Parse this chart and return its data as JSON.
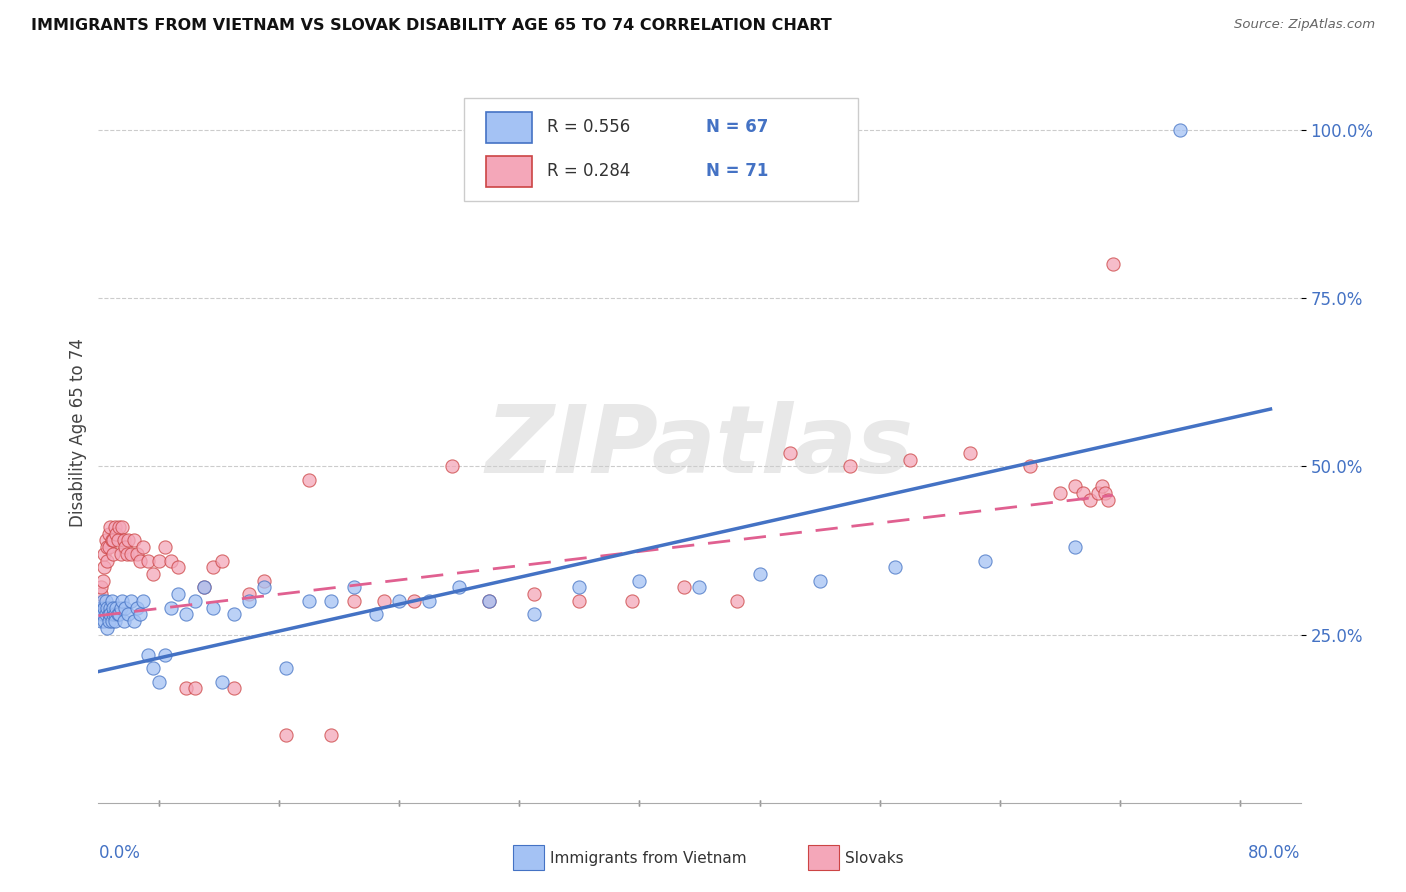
{
  "title": "IMMIGRANTS FROM VIETNAM VS SLOVAK DISABILITY AGE 65 TO 74 CORRELATION CHART",
  "source": "Source: ZipAtlas.com",
  "ylabel": "Disability Age 65 to 74",
  "xlim": [
    0.0,
    0.8
  ],
  "ylim": [
    0.0,
    1.1
  ],
  "yticks": [
    0.25,
    0.5,
    0.75,
    1.0
  ],
  "ytick_labels": [
    "25.0%",
    "50.0%",
    "75.0%",
    "100.0%"
  ],
  "xtick_left_label": "0.0%",
  "xtick_right_label": "80.0%",
  "legend_r1": "R = 0.556",
  "legend_n1": "N = 67",
  "legend_r2": "R = 0.284",
  "legend_n2": "N = 71",
  "color_vietnam_fill": "#a4c2f4",
  "color_vietnam_edge": "#4472c4",
  "color_slovak_fill": "#f4a7b9",
  "color_slovak_edge": "#cc4444",
  "color_vietnam_line": "#4472c4",
  "color_slovak_line": "#e06090",
  "color_ytick": "#4472c4",
  "color_xtick": "#4472c4",
  "bottom_legend_label1": "Immigrants from Vietnam",
  "bottom_legend_label2": "Slovaks",
  "watermark": "ZIPatlas",
  "vietnam_x": [
    0.001,
    0.002,
    0.002,
    0.003,
    0.003,
    0.004,
    0.004,
    0.005,
    0.005,
    0.006,
    0.006,
    0.007,
    0.007,
    0.008,
    0.008,
    0.009,
    0.009,
    0.01,
    0.01,
    0.011,
    0.011,
    0.012,
    0.013,
    0.014,
    0.015,
    0.016,
    0.017,
    0.018,
    0.02,
    0.022,
    0.024,
    0.026,
    0.028,
    0.03,
    0.033,
    0.036,
    0.04,
    0.044,
    0.048,
    0.053,
    0.058,
    0.064,
    0.07,
    0.076,
    0.082,
    0.09,
    0.1,
    0.11,
    0.125,
    0.14,
    0.155,
    0.17,
    0.185,
    0.2,
    0.22,
    0.24,
    0.26,
    0.29,
    0.32,
    0.36,
    0.4,
    0.44,
    0.48,
    0.53,
    0.59,
    0.65,
    0.72
  ],
  "vietnam_y": [
    0.28,
    0.29,
    0.27,
    0.28,
    0.3,
    0.27,
    0.29,
    0.28,
    0.3,
    0.26,
    0.29,
    0.28,
    0.27,
    0.29,
    0.28,
    0.27,
    0.3,
    0.28,
    0.29,
    0.28,
    0.27,
    0.29,
    0.28,
    0.28,
    0.29,
    0.3,
    0.27,
    0.29,
    0.28,
    0.3,
    0.27,
    0.29,
    0.28,
    0.3,
    0.22,
    0.2,
    0.18,
    0.22,
    0.29,
    0.31,
    0.28,
    0.3,
    0.32,
    0.29,
    0.18,
    0.28,
    0.3,
    0.32,
    0.2,
    0.3,
    0.3,
    0.32,
    0.28,
    0.3,
    0.3,
    0.32,
    0.3,
    0.28,
    0.32,
    0.33,
    0.32,
    0.34,
    0.33,
    0.35,
    0.36,
    0.38,
    1.0
  ],
  "slovak_x": [
    0.001,
    0.002,
    0.002,
    0.003,
    0.004,
    0.004,
    0.005,
    0.006,
    0.006,
    0.007,
    0.007,
    0.008,
    0.009,
    0.01,
    0.01,
    0.011,
    0.012,
    0.013,
    0.014,
    0.015,
    0.016,
    0.017,
    0.018,
    0.019,
    0.02,
    0.022,
    0.024,
    0.026,
    0.028,
    0.03,
    0.033,
    0.036,
    0.04,
    0.044,
    0.048,
    0.053,
    0.058,
    0.064,
    0.07,
    0.076,
    0.082,
    0.09,
    0.1,
    0.11,
    0.125,
    0.14,
    0.155,
    0.17,
    0.19,
    0.21,
    0.235,
    0.26,
    0.29,
    0.32,
    0.355,
    0.39,
    0.425,
    0.46,
    0.5,
    0.54,
    0.58,
    0.62,
    0.64,
    0.65,
    0.655,
    0.66,
    0.665,
    0.668,
    0.67,
    0.672,
    0.675
  ],
  "slovak_y": [
    0.29,
    0.31,
    0.32,
    0.33,
    0.35,
    0.37,
    0.39,
    0.38,
    0.36,
    0.38,
    0.4,
    0.41,
    0.39,
    0.37,
    0.39,
    0.41,
    0.4,
    0.39,
    0.41,
    0.37,
    0.41,
    0.39,
    0.38,
    0.37,
    0.39,
    0.37,
    0.39,
    0.37,
    0.36,
    0.38,
    0.36,
    0.34,
    0.36,
    0.38,
    0.36,
    0.35,
    0.17,
    0.17,
    0.32,
    0.35,
    0.36,
    0.17,
    0.31,
    0.33,
    0.1,
    0.48,
    0.1,
    0.3,
    0.3,
    0.3,
    0.5,
    0.3,
    0.31,
    0.3,
    0.3,
    0.32,
    0.3,
    0.52,
    0.5,
    0.51,
    0.52,
    0.5,
    0.46,
    0.47,
    0.46,
    0.45,
    0.46,
    0.47,
    0.46,
    0.45,
    0.8
  ]
}
